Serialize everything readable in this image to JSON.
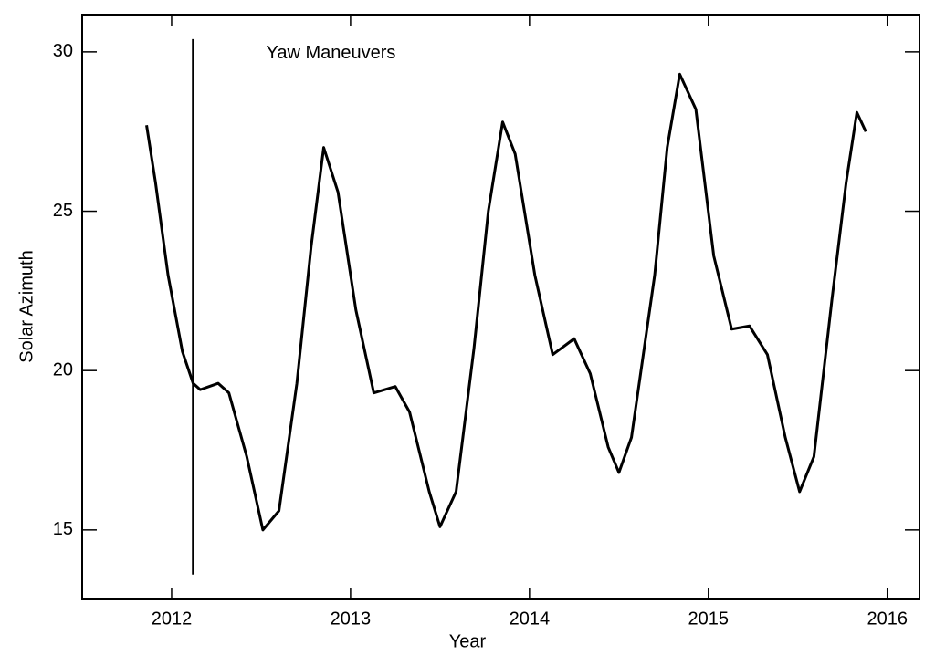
{
  "chart_data": {
    "type": "line",
    "x_label": "Year",
    "y_label": "Solar Azimuth",
    "xlim": [
      2011.5,
      2016.18
    ],
    "ylim": [
      12.82,
      31.17
    ],
    "xticks": [
      2012,
      2013,
      2014,
      2015,
      2016
    ],
    "yticks": [
      15,
      20,
      25,
      30
    ],
    "series": [
      {
        "color": "#000000",
        "x": [
          2011.86,
          2011.91,
          2011.98,
          2012.06,
          2012.12,
          2012.16,
          2012.26,
          2012.32,
          2012.42,
          2012.51,
          2012.6,
          2012.7,
          2012.78,
          2012.85,
          2012.93,
          2013.03,
          2013.13,
          2013.25,
          2013.33,
          2013.44,
          2013.5,
          2013.59,
          2013.69,
          2013.77,
          2013.85,
          2013.92,
          2014.03,
          2014.13,
          2014.25,
          2014.34,
          2014.44,
          2014.5,
          2014.57,
          2014.7,
          2014.77,
          2014.84,
          2014.93,
          2015.03,
          2015.13,
          2015.23,
          2015.33,
          2015.43,
          2015.51,
          2015.59,
          2015.69,
          2015.77,
          2015.83,
          2015.88
        ],
        "values": [
          27.7,
          25.9,
          23.0,
          20.6,
          19.6,
          19.4,
          19.6,
          19.3,
          17.3,
          15.0,
          15.6,
          19.6,
          23.9,
          27.0,
          25.6,
          21.9,
          19.3,
          19.5,
          18.7,
          16.2,
          15.1,
          16.2,
          20.7,
          25.0,
          27.8,
          26.8,
          23.0,
          20.5,
          21.0,
          19.9,
          17.6,
          16.8,
          17.9,
          23.0,
          27.0,
          29.3,
          28.2,
          23.6,
          21.3,
          21.4,
          20.5,
          17.9,
          16.2,
          17.3,
          22.2,
          25.9,
          28.1,
          27.5
        ]
      }
    ],
    "annotations": [
      {
        "text": "Yaw Maneuvers",
        "x": 2012.12,
        "y_range": [
          13.6,
          30.4
        ]
      }
    ]
  }
}
